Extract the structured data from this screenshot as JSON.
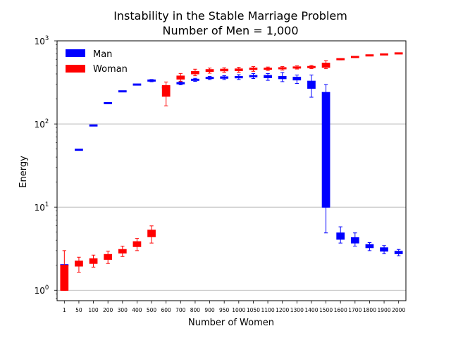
{
  "chart_data": {
    "type": "boxplot",
    "title_line1": "Instability in the Stable Marriage Problem",
    "title_line2": "Number of Men = 1,000",
    "xlabel": "Number of Women",
    "ylabel": "Energy",
    "yscale": "log",
    "ylim": [
      0.75,
      1000
    ],
    "grid": "horizontal major",
    "legend_location": "upper-left",
    "y_ticks": [
      {
        "value": 1,
        "base": "10",
        "exp": "0"
      },
      {
        "value": 10,
        "base": "10",
        "exp": "1"
      },
      {
        "value": 100,
        "base": "10",
        "exp": "2"
      },
      {
        "value": 1000,
        "base": "10",
        "exp": "3"
      }
    ],
    "categories": [
      "1",
      "50",
      "100",
      "200",
      "300",
      "400",
      "500",
      "600",
      "700",
      "800",
      "900",
      "950",
      "1000",
      "1050",
      "1100",
      "1200",
      "1300",
      "1400",
      "1500",
      "1600",
      "1700",
      "1800",
      "1900",
      "2000"
    ],
    "series": [
      {
        "name": "Man",
        "color": "#0000ff",
        "boxes": [
          {
            "cat": "1",
            "whislo": 2.0,
            "q1": 2.0,
            "med": 2.0,
            "q3": 2.0,
            "whishi": 2.0
          },
          {
            "cat": "50",
            "whislo": 49,
            "q1": 49,
            "med": 49,
            "q3": 49,
            "whishi": 49
          },
          {
            "cat": "100",
            "whislo": 96,
            "q1": 96,
            "med": 96,
            "q3": 96,
            "whishi": 96
          },
          {
            "cat": "200",
            "whislo": 178,
            "q1": 178,
            "med": 178,
            "q3": 178,
            "whishi": 178
          },
          {
            "cat": "300",
            "whislo": 247,
            "q1": 247,
            "med": 247,
            "q3": 247,
            "whishi": 247
          },
          {
            "cat": "400",
            "whislo": 298,
            "q1": 298,
            "med": 298,
            "q3": 298,
            "whishi": 298
          },
          {
            "cat": "500",
            "whislo": 322,
            "q1": 328,
            "med": 333,
            "q3": 338,
            "whishi": 343
          },
          {
            "cat": "600",
            "whislo": 268,
            "q1": 272,
            "med": 276,
            "q3": 280,
            "whishi": 285
          },
          {
            "cat": "700",
            "whislo": 296,
            "q1": 303,
            "med": 310,
            "q3": 316,
            "whishi": 323
          },
          {
            "cat": "800",
            "whislo": 326,
            "q1": 334,
            "med": 340,
            "q3": 346,
            "whishi": 354
          },
          {
            "cat": "900",
            "whislo": 343,
            "q1": 352,
            "med": 358,
            "q3": 364,
            "whishi": 373
          },
          {
            "cat": "950",
            "whislo": 343,
            "q1": 354,
            "med": 362,
            "q3": 370,
            "whishi": 381
          },
          {
            "cat": "1000",
            "whislo": 343,
            "q1": 358,
            "med": 366,
            "q3": 374,
            "whishi": 392
          },
          {
            "cat": "1050",
            "whislo": 352,
            "q1": 368,
            "med": 376,
            "q3": 384,
            "whishi": 404
          },
          {
            "cat": "1100",
            "whislo": 335,
            "q1": 360,
            "med": 372,
            "q3": 384,
            "whishi": 404
          },
          {
            "cat": "1200",
            "whislo": 323,
            "q1": 350,
            "med": 362,
            "q3": 374,
            "whishi": 416
          },
          {
            "cat": "1300",
            "whislo": 307,
            "q1": 338,
            "med": 352,
            "q3": 366,
            "whishi": 388
          },
          {
            "cat": "1400",
            "whislo": 210,
            "q1": 268,
            "med": 298,
            "q3": 328,
            "whishi": 388
          },
          {
            "cat": "1500",
            "whislo": 4.9,
            "q1": 10,
            "med": 10,
            "q3": 240,
            "whishi": 298
          },
          {
            "cat": "1600",
            "whislo": 3.7,
            "q1": 4.1,
            "med": 4.5,
            "q3": 4.9,
            "whishi": 5.8
          },
          {
            "cat": "1700",
            "whislo": 3.4,
            "q1": 3.7,
            "med": 4.0,
            "q3": 4.3,
            "whishi": 4.9
          },
          {
            "cat": "1800",
            "whislo": 3.0,
            "q1": 3.25,
            "med": 3.4,
            "q3": 3.55,
            "whishi": 3.75
          },
          {
            "cat": "1900",
            "whislo": 2.75,
            "q1": 2.95,
            "med": 3.1,
            "q3": 3.25,
            "whishi": 3.45
          },
          {
            "cat": "2000",
            "whislo": 2.6,
            "q1": 2.75,
            "med": 2.85,
            "q3": 2.95,
            "whishi": 3.1
          }
        ]
      },
      {
        "name": "Woman",
        "color": "#ff0000",
        "boxes": [
          {
            "cat": "1",
            "whislo": 1.0,
            "q1": 1.0,
            "med": 1.0,
            "q3": 2.0,
            "whishi": 3.0
          },
          {
            "cat": "50",
            "whislo": 1.65,
            "q1": 1.95,
            "med": 2.1,
            "q3": 2.25,
            "whishi": 2.5
          },
          {
            "cat": "100",
            "whislo": 1.9,
            "q1": 2.1,
            "med": 2.25,
            "q3": 2.4,
            "whishi": 2.65
          },
          {
            "cat": "200",
            "whislo": 2.1,
            "q1": 2.35,
            "med": 2.55,
            "q3": 2.7,
            "whishi": 2.95
          },
          {
            "cat": "300",
            "whislo": 2.55,
            "q1": 2.8,
            "med": 2.95,
            "q3": 3.1,
            "whishi": 3.4
          },
          {
            "cat": "400",
            "whislo": 3.0,
            "q1": 3.35,
            "med": 3.6,
            "q3": 3.85,
            "whishi": 4.2
          },
          {
            "cat": "500",
            "whislo": 3.7,
            "q1": 4.4,
            "med": 4.9,
            "q3": 5.3,
            "whishi": 5.95
          },
          {
            "cat": "600",
            "whislo": 165,
            "q1": 215,
            "med": 258,
            "q3": 290,
            "whishi": 320
          },
          {
            "cat": "700",
            "whislo": 327,
            "q1": 346,
            "med": 362,
            "q3": 378,
            "whishi": 405
          },
          {
            "cat": "800",
            "whislo": 380,
            "q1": 400,
            "med": 414,
            "q3": 428,
            "whishi": 456
          },
          {
            "cat": "900",
            "whislo": 408,
            "q1": 428,
            "med": 440,
            "q3": 452,
            "whishi": 470
          },
          {
            "cat": "950",
            "whislo": 418,
            "q1": 435,
            "med": 446,
            "q3": 457,
            "whishi": 474
          },
          {
            "cat": "1000",
            "whislo": 418,
            "q1": 437,
            "med": 448,
            "q3": 460,
            "whishi": 480
          },
          {
            "cat": "1050",
            "whislo": 430,
            "q1": 452,
            "med": 462,
            "q3": 472,
            "whishi": 490
          },
          {
            "cat": "1100",
            "whislo": 440,
            "q1": 454,
            "med": 462,
            "q3": 470,
            "whishi": 484
          },
          {
            "cat": "1200",
            "whislo": 446,
            "q1": 460,
            "med": 468,
            "q3": 476,
            "whishi": 490
          },
          {
            "cat": "1300",
            "whislo": 458,
            "q1": 470,
            "med": 478,
            "q3": 486,
            "whishi": 500
          },
          {
            "cat": "1400",
            "whislo": 464,
            "q1": 476,
            "med": 484,
            "q3": 492,
            "whishi": 506
          },
          {
            "cat": "1500",
            "whislo": 462,
            "q1": 480,
            "med": 505,
            "q3": 540,
            "whishi": 578
          },
          {
            "cat": "1600",
            "whislo": 590,
            "q1": 598,
            "med": 602,
            "q3": 606,
            "whishi": 612
          },
          {
            "cat": "1700",
            "whislo": 630,
            "q1": 636,
            "med": 640,
            "q3": 644,
            "whishi": 650
          },
          {
            "cat": "1800",
            "whislo": 662,
            "q1": 666,
            "med": 668,
            "q3": 670,
            "whishi": 674
          },
          {
            "cat": "1900",
            "whislo": 682,
            "q1": 685,
            "med": 687,
            "q3": 689,
            "whishi": 692
          },
          {
            "cat": "2000",
            "whislo": 700,
            "q1": 704,
            "med": 706,
            "q3": 708,
            "whishi": 712
          }
        ]
      }
    ]
  }
}
